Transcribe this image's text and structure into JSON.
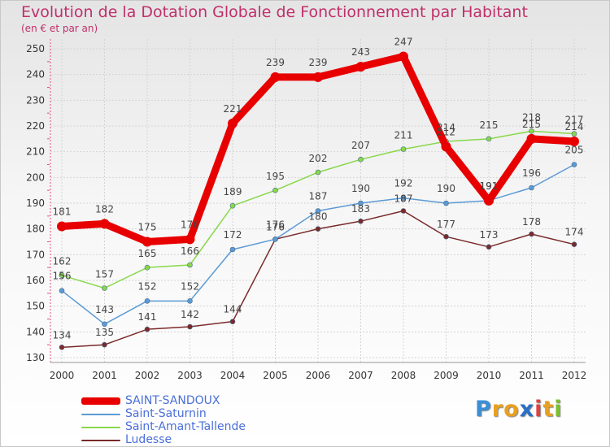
{
  "header": {
    "title": "Evolution de la Dotation Globale de Fonctionnement par Habitant",
    "subtitle": "(en € et par an)"
  },
  "logo": {
    "letters": [
      "P",
      "r",
      "o",
      "x",
      "i",
      "t",
      "i"
    ],
    "colors": [
      "#3a8fd8",
      "#e8a020",
      "#e8a020",
      "#2a6fc8",
      "#e04040",
      "#e8a020",
      "#7ac030"
    ]
  },
  "chart_data": {
    "type": "line",
    "title": "Evolution de la Dotation Globale de Fonctionnement par Habitant",
    "subtitle": "(en € et par an)",
    "xlabel": "",
    "ylabel": "",
    "categories": [
      "2000",
      "2001",
      "2002",
      "2003",
      "2004",
      "2005",
      "2006",
      "2007",
      "2008",
      "2009",
      "2010",
      "2011",
      "2012"
    ],
    "ylim": [
      130,
      250
    ],
    "yticks": [
      130,
      140,
      150,
      160,
      170,
      180,
      190,
      200,
      210,
      220,
      230,
      240,
      250
    ],
    "grid": true,
    "legend_position": "bottom-left",
    "series": [
      {
        "name": "SAINT-SANDOUX",
        "color": "#e80000",
        "values": [
          181,
          182,
          175,
          176,
          221,
          239,
          239,
          243,
          247,
          212,
          191,
          215,
          214
        ],
        "labels": [
          "181",
          "182",
          "175",
          "176",
          "221",
          "239",
          "239",
          "243",
          "247",
          "212",
          "191",
          "215",
          "214"
        ]
      },
      {
        "name": "Saint-Saturnin",
        "color": "#5b9ad5",
        "values": [
          156,
          143,
          152,
          152,
          172,
          176,
          187,
          190,
          192,
          190,
          191,
          196,
          205
        ],
        "labels": [
          "156",
          "143",
          "152",
          "152",
          "172",
          "176",
          "187",
          "190",
          "192",
          "190",
          "191",
          "196",
          "205"
        ]
      },
      {
        "name": "Saint-Amant-Tallende",
        "color": "#88d84a",
        "values": [
          162,
          157,
          165,
          166,
          189,
          195,
          202,
          207,
          211,
          214,
          215,
          218,
          217
        ],
        "labels": [
          "162",
          "157",
          "165",
          "166",
          "189",
          "195",
          "202",
          "207",
          "211",
          "214",
          "215",
          "218",
          "217"
        ]
      },
      {
        "name": "Ludesse",
        "color": "#7a2a2a",
        "values": [
          134,
          135,
          141,
          142,
          144,
          176,
          180,
          183,
          187,
          177,
          173,
          178,
          174
        ],
        "labels": [
          "134",
          "135",
          "141",
          "142",
          "144",
          "176",
          "180",
          "183",
          "187",
          "177",
          "173",
          "178",
          "174"
        ]
      }
    ]
  }
}
